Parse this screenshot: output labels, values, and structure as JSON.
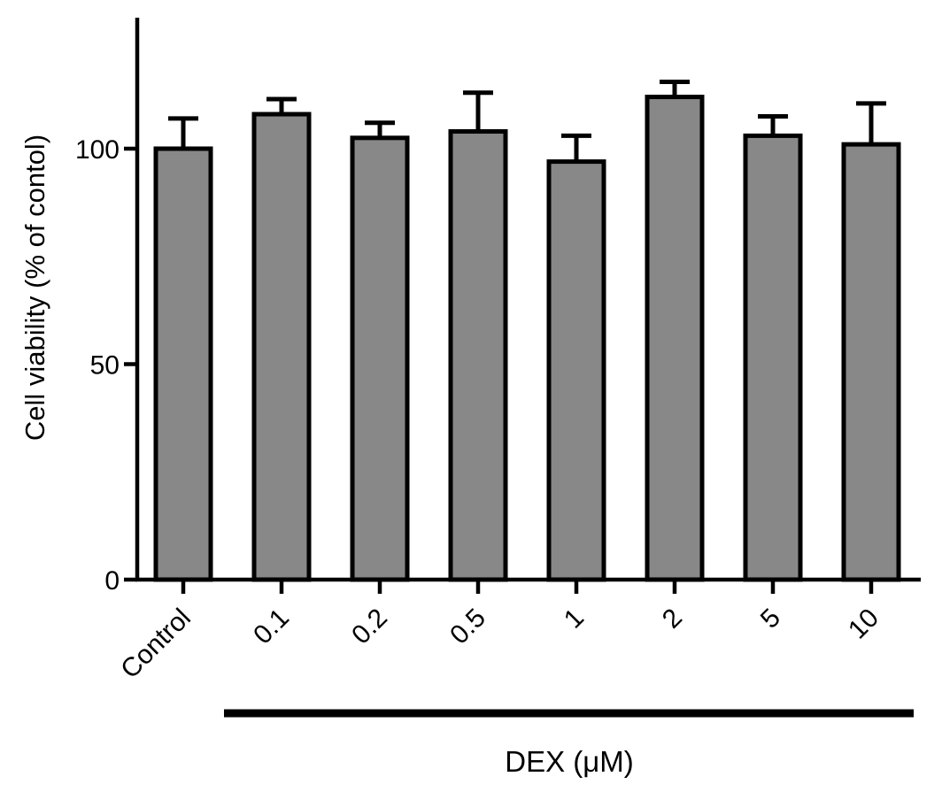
{
  "chart_data": {
    "type": "bar",
    "title": "",
    "xlabel": "",
    "ylabel": "Cell viability (% of contol)",
    "categories": [
      "Control",
      "0.1",
      "0.2",
      "0.5",
      "1",
      "2",
      "5",
      "10"
    ],
    "series": [
      {
        "values": [
          100,
          108,
          102.5,
          104,
          97,
          112,
          103,
          101
        ],
        "error_upper": [
          107,
          111.5,
          106,
          113,
          103,
          115.5,
          107.5,
          110.5
        ]
      }
    ],
    "ylim": [
      0,
      130
    ],
    "yticks": [
      0,
      50,
      100
    ],
    "ytick_labels": [
      "0",
      "50",
      "100"
    ],
    "bracket": {
      "label": "DEX (μM)",
      "from_category": "0.1",
      "to_category": "10"
    },
    "grid": false,
    "legend": "none",
    "colors": {
      "bar_fill": "#888888",
      "bar_edge": "#000000",
      "axis": "#000000"
    }
  }
}
